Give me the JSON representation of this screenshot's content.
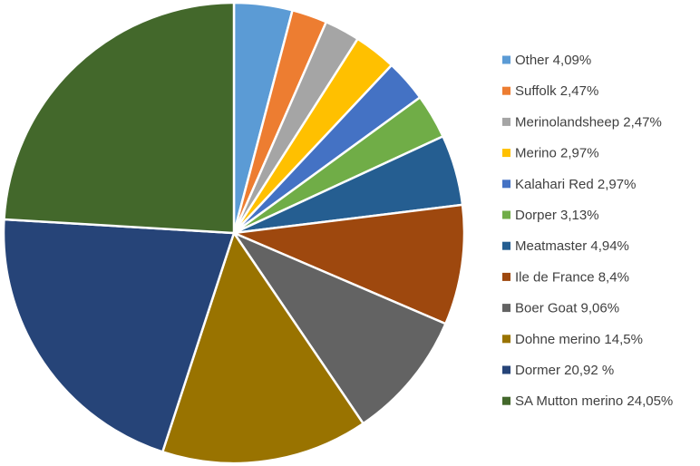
{
  "chart_data": {
    "type": "pie",
    "title": "",
    "legend_position": "right",
    "slices": [
      {
        "label": "Other 4,09%",
        "value": 4.09,
        "color": "#5B9BD5"
      },
      {
        "label": "Suffolk 2,47%",
        "value": 2.47,
        "color": "#ED7D31"
      },
      {
        "label": "Merinolandsheep 2,47%",
        "value": 2.47,
        "color": "#A5A5A5"
      },
      {
        "label": "Merino 2,97%",
        "value": 2.97,
        "color": "#FFC000"
      },
      {
        "label": "Kalahari Red 2,97%",
        "value": 2.97,
        "color": "#4472C4"
      },
      {
        "label": "Dorper 3,13%",
        "value": 3.13,
        "color": "#70AD47"
      },
      {
        "label": "Meatmaster 4,94%",
        "value": 4.94,
        "color": "#255E91"
      },
      {
        "label": "Ile de France 8,4%",
        "value": 8.4,
        "color": "#9E480E"
      },
      {
        "label": "Boer Goat 9,06%",
        "value": 9.06,
        "color": "#636363"
      },
      {
        "label": "Dohne merino 14,5%",
        "value": 14.5,
        "color": "#997300"
      },
      {
        "label": "Dormer 20,92 %",
        "value": 20.92,
        "color": "#264478"
      },
      {
        "label": "SA Mutton merino 24,05%",
        "value": 24.05,
        "color": "#43682B"
      }
    ]
  }
}
